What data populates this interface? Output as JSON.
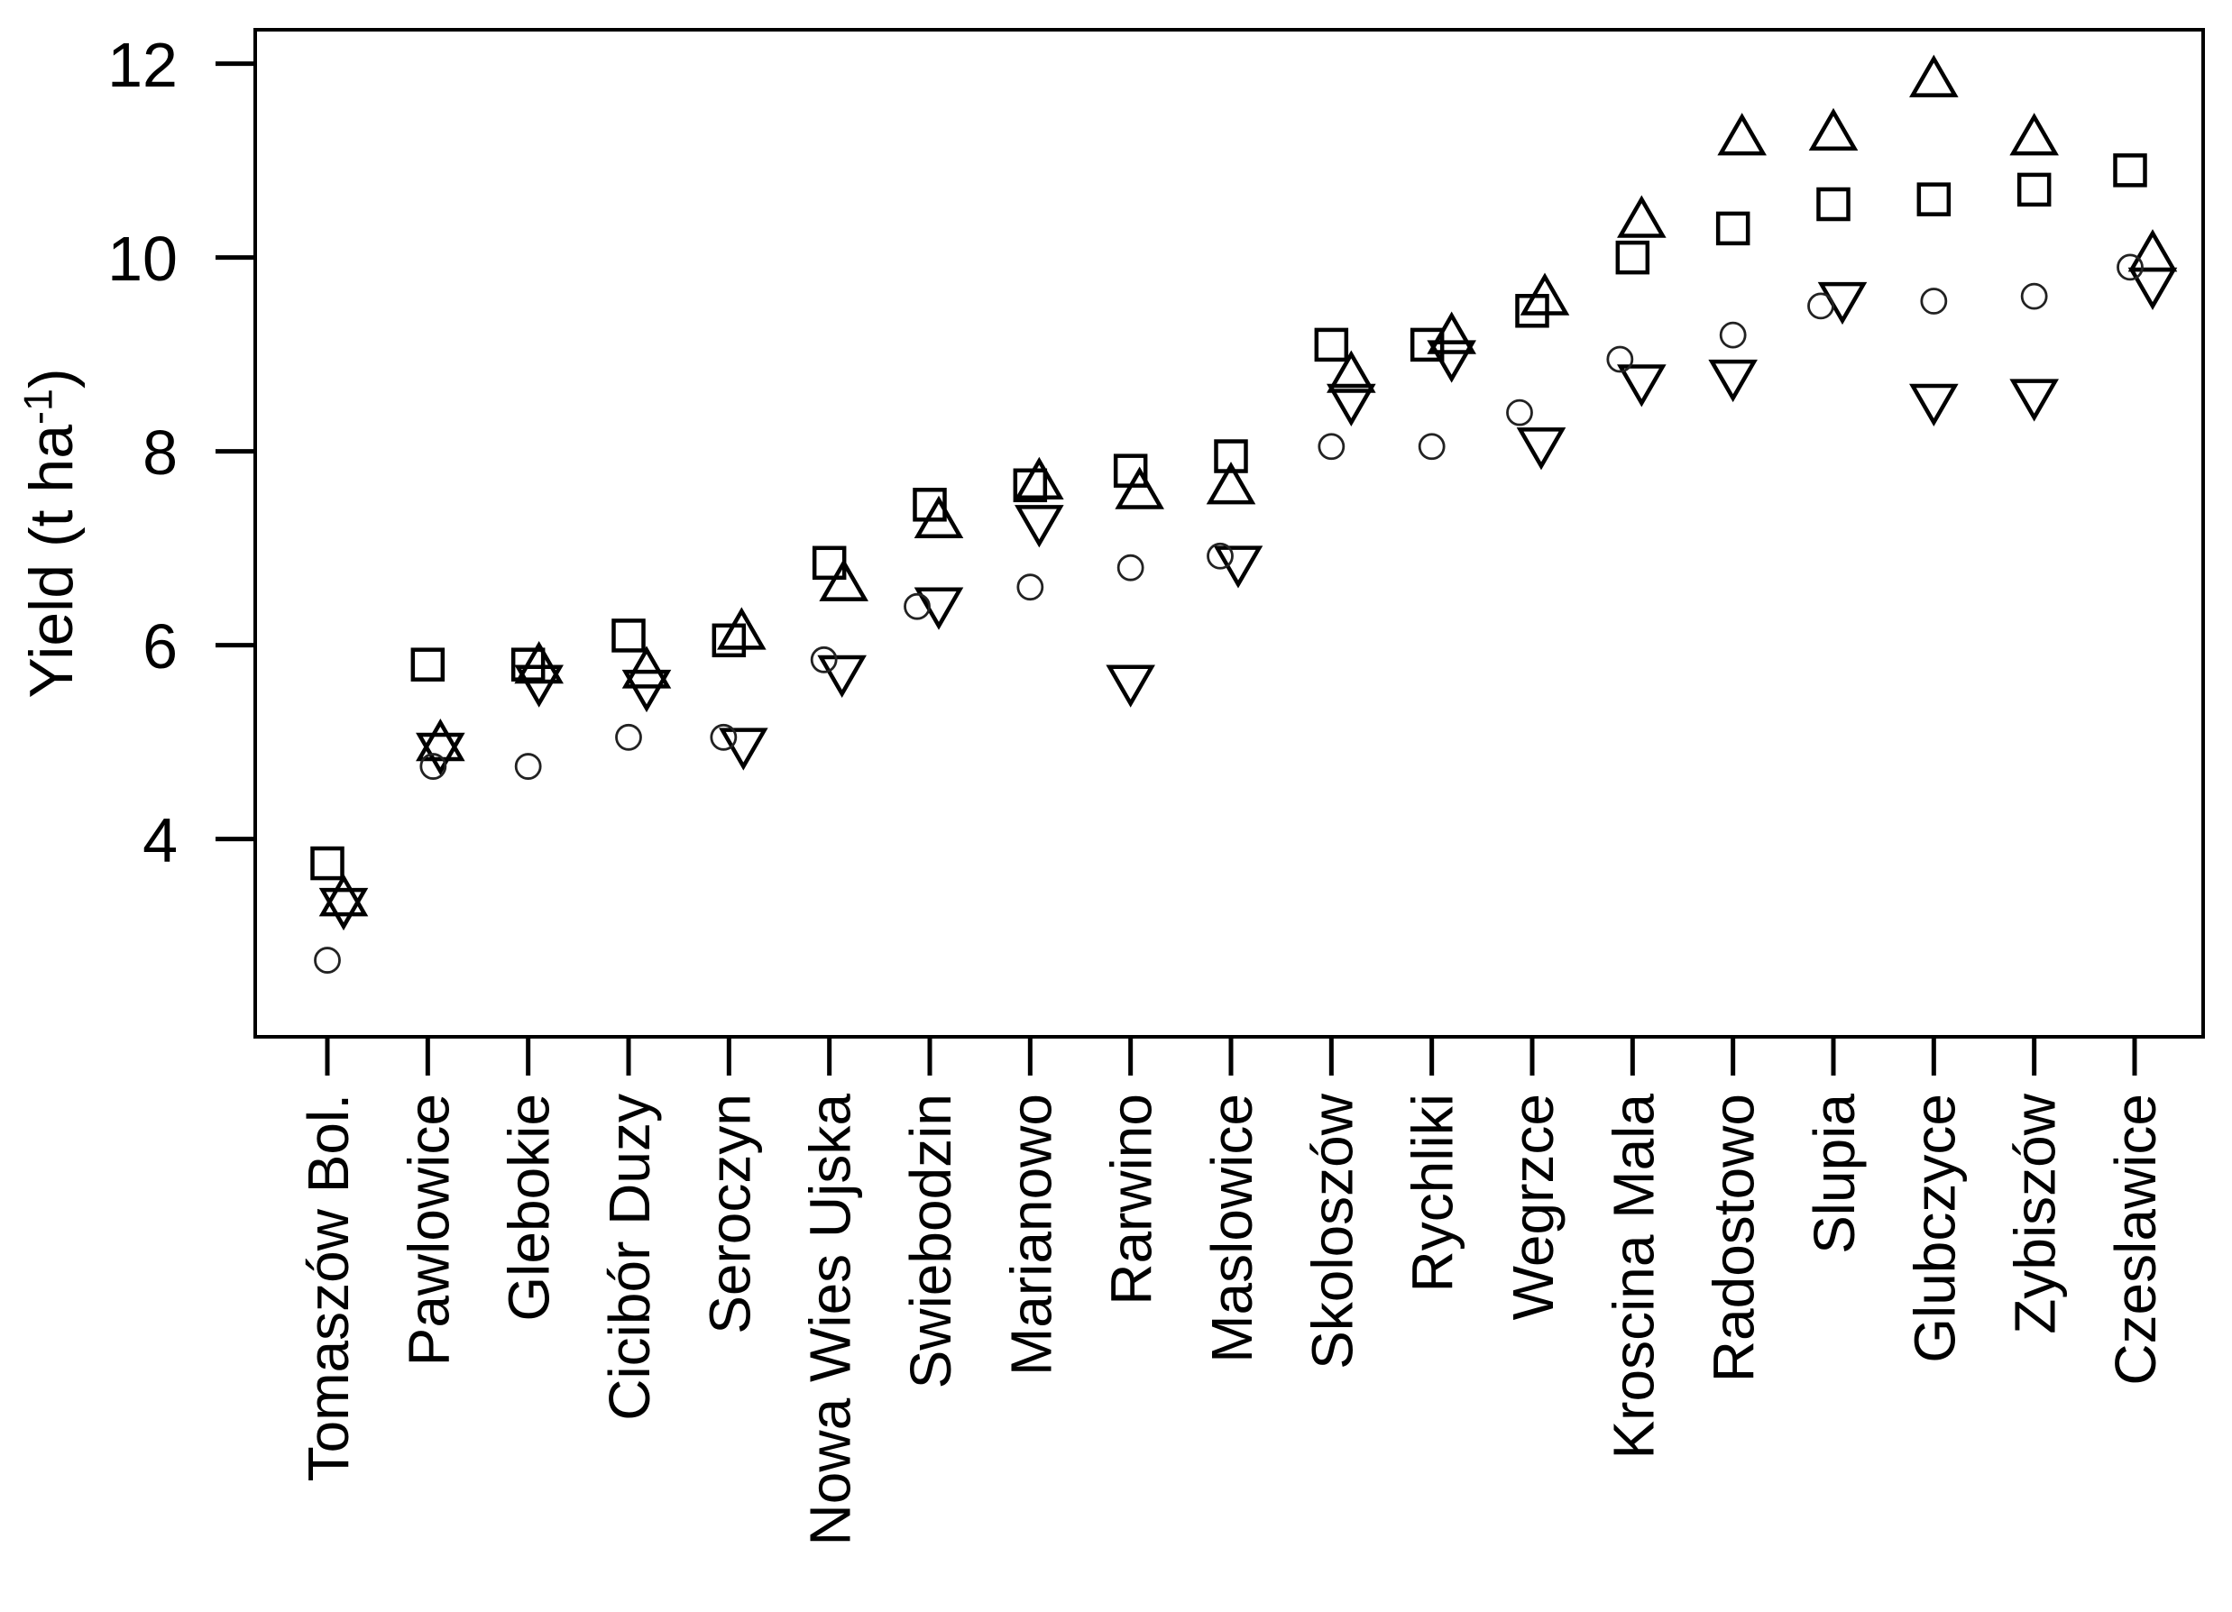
{
  "figure": {
    "background": "#ffffff",
    "foreground": "#000000",
    "description": "Scatter plot of yield by site for four genotype/marker groups"
  },
  "chart_data": {
    "type": "scatter",
    "title": "",
    "xlabel": "",
    "ylabel": "Yield (t ha⁻¹)",
    "ylabel_base": "Yield (t ha",
    "ylabel_sup": "-1",
    "ylabel_close": ")",
    "ylim": [
      1.96,
      12.35
    ],
    "yticks": [
      4,
      6,
      8,
      10,
      12
    ],
    "grid": false,
    "legend_position": "none",
    "marker_color": "#000000",
    "circle_color": "#222222",
    "categories": [
      "Tomaszów Bol.",
      "Pawlowice",
      "Glebokie",
      "Cicibór Duzy",
      "Seroczyn",
      "Nowa Wies Ujska",
      "Swiebodzin",
      "Marianowo",
      "Rarwino",
      "Maslowice",
      "Skoloszów",
      "Rychliki",
      "Wegrzce",
      "Kroscina Mala",
      "Radostowo",
      "Slupia",
      "Glubczyce",
      "Zybiszów",
      "Czeslawice"
    ],
    "series": [
      {
        "name": "square",
        "marker": "square",
        "values": [
          3.75,
          5.8,
          5.8,
          6.1,
          6.05,
          6.85,
          7.45,
          7.65,
          7.8,
          7.95,
          9.1,
          9.1,
          9.45,
          10.0,
          10.3,
          10.55,
          10.6,
          10.7,
          10.9
        ],
        "x_jitter": [
          0,
          0,
          0,
          0,
          0,
          0,
          0,
          0,
          0,
          0,
          0,
          -5,
          0,
          0,
          0,
          0,
          0,
          0,
          -5
        ]
      },
      {
        "name": "triangle-up",
        "marker": "triangle-up",
        "values": [
          3.35,
          4.95,
          5.75,
          5.7,
          6.1,
          6.6,
          7.25,
          7.65,
          7.55,
          7.6,
          8.75,
          9.15,
          9.55,
          10.35,
          11.2,
          11.25,
          11.8,
          11.2,
          10.0
        ],
        "x_jitter": [
          18,
          14,
          12,
          20,
          14,
          16,
          10,
          10,
          10,
          0,
          22,
          22,
          14,
          10,
          10,
          0,
          0,
          0,
          20
        ]
      },
      {
        "name": "triangle-down",
        "marker": "triangle-down",
        "values": [
          3.35,
          4.95,
          5.65,
          5.6,
          5.0,
          5.75,
          6.45,
          7.3,
          5.65,
          6.88,
          8.55,
          9.0,
          8.1,
          8.75,
          8.8,
          9.6,
          8.55,
          8.6,
          9.75
        ],
        "x_jitter": [
          18,
          14,
          12,
          20,
          16,
          14,
          10,
          10,
          0,
          8,
          22,
          22,
          10,
          10,
          0,
          10,
          0,
          0,
          20
        ]
      },
      {
        "name": "circle",
        "marker": "circle",
        "values": [
          2.75,
          4.75,
          4.75,
          5.05,
          5.05,
          5.85,
          6.4,
          6.6,
          6.8,
          6.92,
          8.05,
          8.05,
          8.4,
          8.95,
          9.2,
          9.5,
          9.55,
          9.6,
          9.9
        ],
        "x_jitter": [
          0,
          6,
          0,
          0,
          -6,
          -6,
          -14,
          0,
          0,
          -12,
          0,
          0,
          -14,
          -14,
          0,
          -14,
          0,
          0,
          -5
        ]
      }
    ]
  }
}
